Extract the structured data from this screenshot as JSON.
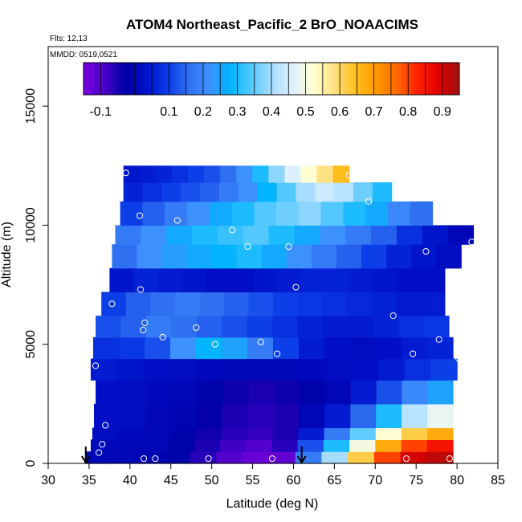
{
  "chart_data": {
    "type": "heatmap",
    "title": "ATOM4 Northeast_Pacific_2 BrO_NOAACIMS",
    "annotations": {
      "flights": "Flts: 12,13",
      "dates": "MMDD: 0519,0521"
    },
    "xlabel": "Latitude (deg N)",
    "ylabel": "Altitude (m)",
    "xlim": [
      30,
      85
    ],
    "ylim": [
      0,
      17500
    ],
    "x_ticks": [
      30,
      35,
      40,
      45,
      50,
      55,
      60,
      65,
      70,
      75,
      80,
      85
    ],
    "y_ticks": [
      0,
      5000,
      10000,
      15000
    ],
    "colorbar": {
      "range": [
        -0.15,
        0.95
      ],
      "tick_values": [
        -0.1,
        0.1,
        0.2,
        0.3,
        0.4,
        0.5,
        0.6,
        0.7,
        0.8,
        0.9
      ],
      "tick_labels": [
        "-0.1",
        "0.1",
        "0.2",
        "0.3",
        "0.4",
        "0.5",
        "0.6",
        "0.7",
        "0.8",
        "0.9"
      ],
      "colors": [
        "#7a00e0",
        "#4a00c8",
        "#0000a8",
        "#0010c8",
        "#0a3ae8",
        "#2e6ef0",
        "#3f8fff",
        "#00b4ff",
        "#50c8ff",
        "#a8dcff",
        "#ddf0ff",
        "#ffffd0",
        "#ffe080",
        "#ffc020",
        "#ff9a00",
        "#ff6a00",
        "#ff2000",
        "#e00000",
        "#a01010"
      ]
    },
    "profile_bands": [
      {
        "alt": [
          0,
          500
        ],
        "lat": [
          34.5,
          79.5
        ],
        "values": [
          0.0,
          0.0,
          -0.01,
          -0.02,
          -0.06,
          -0.1,
          -0.13,
          -0.12,
          0.18,
          0.4,
          0.62,
          0.8,
          0.9,
          0.92
        ]
      },
      {
        "alt": [
          500,
          1000
        ],
        "lat": [
          35.2,
          79.5
        ],
        "values": [
          0.01,
          0.0,
          0.0,
          -0.02,
          -0.05,
          -0.08,
          -0.1,
          -0.06,
          0.12,
          0.3,
          0.5,
          0.68,
          0.8,
          0.85
        ]
      },
      {
        "alt": [
          1000,
          1500
        ],
        "lat": [
          35.4,
          79.5
        ],
        "values": [
          0.02,
          0.01,
          0.0,
          -0.02,
          -0.04,
          -0.06,
          -0.07,
          -0.05,
          0.05,
          0.18,
          0.35,
          0.52,
          0.62,
          0.68
        ]
      },
      {
        "alt": [
          1500,
          2500
        ],
        "lat": [
          35.6,
          79.5
        ],
        "values": [
          0.03,
          0.02,
          0.0,
          -0.01,
          -0.03,
          -0.05,
          -0.06,
          -0.05,
          0.0,
          0.05,
          0.15,
          0.3,
          0.42,
          0.48
        ]
      },
      {
        "alt": [
          2500,
          3500
        ],
        "lat": [
          35.8,
          79.5
        ],
        "values": [
          0.03,
          0.02,
          0.01,
          0.0,
          -0.02,
          -0.04,
          -0.05,
          -0.04,
          -0.02,
          0.0,
          0.05,
          0.12,
          0.2,
          0.25
        ]
      },
      {
        "alt": [
          3500,
          4400
        ],
        "lat": [
          35.2,
          80.0
        ],
        "values": [
          0.05,
          0.04,
          0.03,
          0.02,
          0.01,
          0.0,
          0.0,
          0.0,
          0.01,
          0.02,
          0.03,
          0.05,
          0.08,
          0.1
        ]
      },
      {
        "alt": [
          4400,
          5300
        ],
        "lat": [
          35.5,
          79.5
        ],
        "values": [
          0.08,
          0.09,
          0.12,
          0.22,
          0.28,
          0.25,
          0.18,
          0.1,
          0.05,
          0.03,
          0.02,
          0.03,
          0.05,
          0.06
        ]
      },
      {
        "alt": [
          5300,
          6200
        ],
        "lat": [
          35.8,
          79.0
        ],
        "values": [
          0.12,
          0.14,
          0.18,
          0.16,
          0.14,
          0.12,
          0.1,
          0.08,
          0.06,
          0.05,
          0.05,
          0.06,
          0.08,
          0.09
        ]
      },
      {
        "alt": [
          6200,
          7200
        ],
        "lat": [
          36.5,
          78.5
        ],
        "values": [
          0.1,
          0.14,
          0.16,
          0.18,
          0.16,
          0.14,
          0.12,
          0.1,
          0.09,
          0.08,
          0.07,
          0.06,
          0.05,
          0.05
        ]
      },
      {
        "alt": [
          7200,
          8200
        ],
        "lat": [
          37.5,
          78.5
        ],
        "values": [
          0.04,
          0.06,
          0.05,
          0.04,
          0.03,
          0.03,
          0.04,
          0.05,
          0.06,
          0.06,
          0.05,
          0.04,
          0.03,
          0.03
        ]
      },
      {
        "alt": [
          8200,
          9200
        ],
        "lat": [
          37.8,
          80.5
        ],
        "values": [
          0.16,
          0.22,
          0.24,
          0.26,
          0.28,
          0.3,
          0.26,
          0.22,
          0.18,
          0.14,
          0.1,
          0.06,
          0.04,
          0.02
        ]
      },
      {
        "alt": [
          9200,
          10000
        ],
        "lat": [
          38.2,
          82.0
        ],
        "values": [
          0.18,
          0.22,
          0.26,
          0.3,
          0.32,
          0.34,
          0.3,
          0.26,
          0.22,
          0.18,
          0.14,
          0.08,
          0.04,
          0.0
        ]
      },
      {
        "alt": [
          10000,
          11000
        ],
        "lat": [
          38.8,
          77.0
        ],
        "values": [
          0.1,
          0.14,
          0.18,
          0.22,
          0.26,
          0.3,
          0.34,
          0.36,
          0.38,
          0.34,
          0.3,
          0.26,
          0.2,
          0.16
        ]
      },
      {
        "alt": [
          11000,
          11800
        ],
        "lat": [
          39.2,
          72.0
        ],
        "values": [
          0.06,
          0.08,
          0.1,
          0.12,
          0.14,
          0.18,
          0.22,
          0.28,
          0.34,
          0.4,
          0.44,
          0.42,
          0.36,
          0.3
        ]
      },
      {
        "alt": [
          11800,
          12500
        ],
        "lat": [
          39.2,
          66.8
        ],
        "values": [
          0.04,
          0.05,
          0.06,
          0.08,
          0.1,
          0.12,
          0.16,
          0.22,
          0.3,
          0.38,
          0.46,
          0.52,
          0.58,
          0.65
        ]
      }
    ],
    "sample_points": [
      {
        "lat": 35.8,
        "alt": 4100
      },
      {
        "lat": 36.2,
        "alt": 450
      },
      {
        "lat": 36.6,
        "alt": 800
      },
      {
        "lat": 37.0,
        "alt": 1600
      },
      {
        "lat": 37.8,
        "alt": 6700
      },
      {
        "lat": 39.5,
        "alt": 12200
      },
      {
        "lat": 41.2,
        "alt": 10400
      },
      {
        "lat": 41.3,
        "alt": 7300
      },
      {
        "lat": 41.6,
        "alt": 5600
      },
      {
        "lat": 41.8,
        "alt": 5900
      },
      {
        "lat": 41.7,
        "alt": 200
      },
      {
        "lat": 43.1,
        "alt": 200
      },
      {
        "lat": 44.0,
        "alt": 5300
      },
      {
        "lat": 45.8,
        "alt": 10200
      },
      {
        "lat": 48.1,
        "alt": 5700
      },
      {
        "lat": 49.6,
        "alt": 200
      },
      {
        "lat": 50.4,
        "alt": 5000
      },
      {
        "lat": 52.5,
        "alt": 9800
      },
      {
        "lat": 54.4,
        "alt": 9100
      },
      {
        "lat": 56.0,
        "alt": 5100
      },
      {
        "lat": 57.4,
        "alt": 200
      },
      {
        "lat": 58.0,
        "alt": 4600
      },
      {
        "lat": 59.4,
        "alt": 9100
      },
      {
        "lat": 60.3,
        "alt": 7400
      },
      {
        "lat": 66.8,
        "alt": 12100
      },
      {
        "lat": 69.2,
        "alt": 11000
      },
      {
        "lat": 72.2,
        "alt": 6200
      },
      {
        "lat": 73.8,
        "alt": 200
      },
      {
        "lat": 74.6,
        "alt": 4600
      },
      {
        "lat": 76.2,
        "alt": 8900
      },
      {
        "lat": 77.8,
        "alt": 5200
      },
      {
        "lat": 79.1,
        "alt": 200
      },
      {
        "lat": 80.2,
        "alt": 4400
      },
      {
        "lat": 81.8,
        "alt": 9300
      }
    ],
    "arrows_at_lat": [
      34.6,
      61.0
    ]
  }
}
